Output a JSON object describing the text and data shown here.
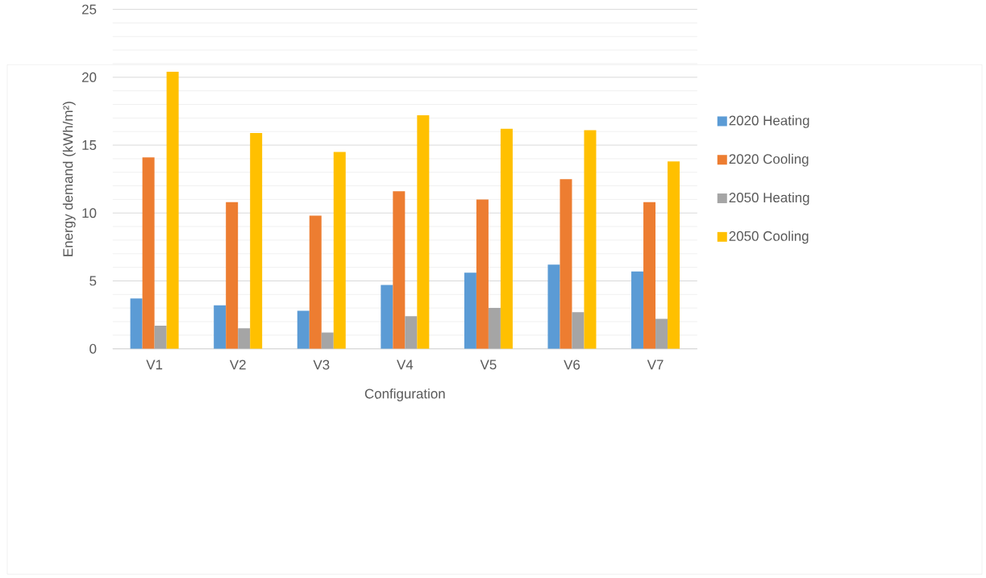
{
  "chart_data": {
    "type": "bar",
    "xlabel": "Configuration",
    "ylabel": "Energy demand (kWh/m²)",
    "categories": [
      "V1",
      "V2",
      "V3",
      "V4",
      "V5",
      "V6",
      "V7"
    ],
    "series": [
      {
        "name": "2020 Heating",
        "color": "#5b9bd5",
        "values": [
          3.7,
          3.2,
          2.8,
          4.7,
          5.6,
          6.2,
          5.7
        ]
      },
      {
        "name": "2020 Cooling",
        "color": "#ed7d31",
        "values": [
          14.1,
          10.8,
          9.8,
          11.6,
          11.0,
          12.5,
          10.8
        ]
      },
      {
        "name": "2050 Heating",
        "color": "#a5a5a5",
        "values": [
          1.7,
          1.5,
          1.2,
          2.4,
          3.0,
          2.7,
          2.2
        ]
      },
      {
        "name": "2050 Cooling",
        "color": "#ffc000",
        "values": [
          20.4,
          15.9,
          14.5,
          17.2,
          16.2,
          16.1,
          13.8
        ]
      }
    ],
    "ylim": [
      0,
      25
    ],
    "yticks": [
      0,
      5,
      10,
      15,
      20,
      25
    ],
    "grid": "y",
    "legend": "right"
  }
}
